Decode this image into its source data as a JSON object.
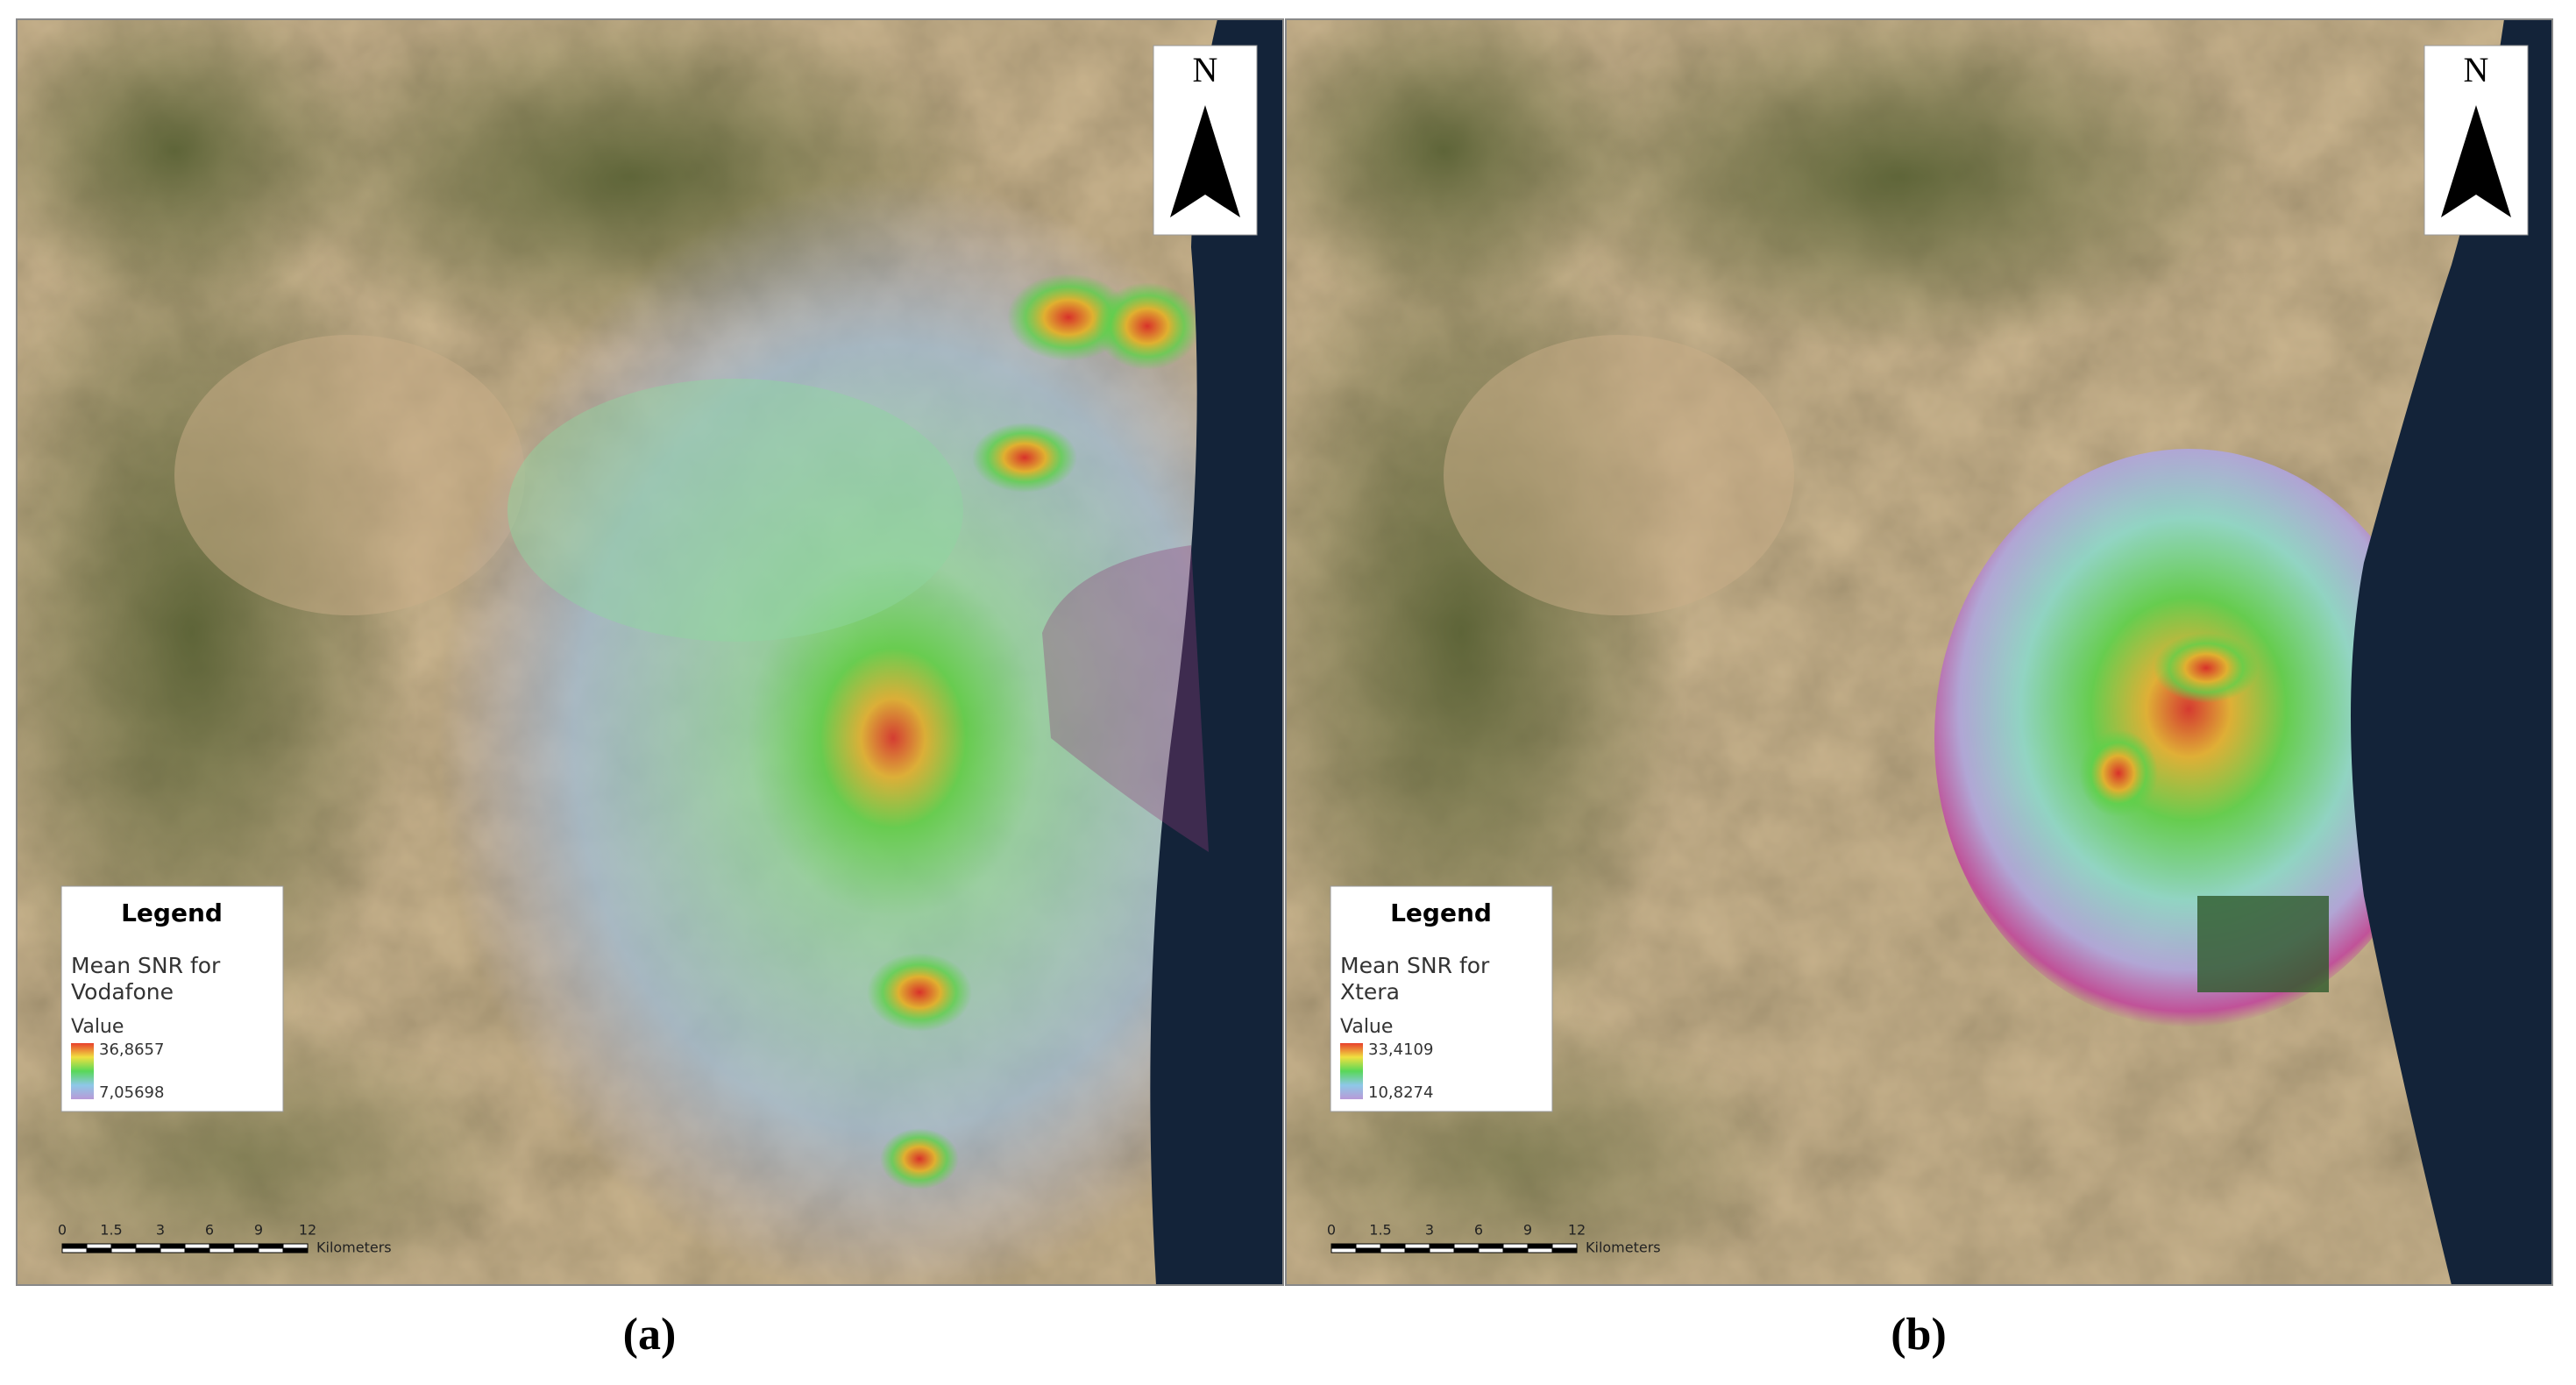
{
  "panels": [
    {
      "legend": {
        "title": "Legend",
        "label_lines": [
          "Mean SNR for",
          "Vodafone"
        ],
        "field": "Value",
        "high": "36,8657",
        "low": "7,05698"
      },
      "north": "N",
      "scale_bar": {
        "ticks": [
          "0",
          "1.5",
          "3",
          "6",
          "9",
          "12"
        ],
        "unit": "Kilometers"
      },
      "caption": "(a)"
    },
    {
      "legend": {
        "title": "Legend",
        "label_lines": [
          "Mean SNR for",
          "Xtera"
        ],
        "field": "Value",
        "high": "33,4109",
        "low": "10,8274"
      },
      "north": "N",
      "scale_bar": {
        "ticks": [
          "0",
          "1.5",
          "3",
          "6",
          "9",
          "12"
        ],
        "unit": "Kilometers"
      },
      "caption": "(b)"
    }
  ]
}
